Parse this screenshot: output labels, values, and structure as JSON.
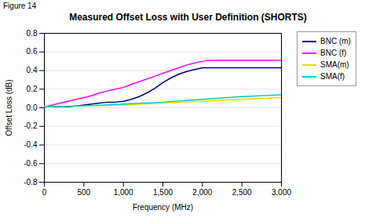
{
  "chart_data": {
    "type": "line",
    "title": "Measured Offset Loss with User Definition (SHORTS)",
    "annotations": [
      "Figure 14"
    ],
    "xlabel": "Frequency (MHz)",
    "ylabel": "Offset Loss (dB)",
    "xlim": [
      0,
      3000
    ],
    "ylim": [
      -0.8,
      0.8
    ],
    "xticks": [
      0,
      500,
      {
        "value": 1000,
        "label": "1,000"
      },
      {
        "value": 1500,
        "label": "1,500"
      },
      {
        "value": 2000,
        "label": "2,000"
      },
      {
        "value": 2500,
        "label": "2,500"
      },
      {
        "value": 3000,
        "label": "3,000"
      }
    ],
    "yticks": [
      -0.8,
      -0.6,
      -0.4,
      -0.2,
      {
        "value": 0,
        "label": "0.0"
      },
      0.2,
      0.4,
      0.6,
      0.8
    ],
    "grid": "y",
    "legend": "right",
    "series": [
      {
        "name": "BNC (m)",
        "color": "#000080",
        "x": [
          0,
          50,
          100,
          200,
          300,
          400,
          500,
          600,
          700,
          800,
          900,
          1000,
          1100,
          1200,
          1300,
          1400,
          1500,
          1600,
          1700,
          1800,
          1900,
          2000,
          2100,
          2200,
          2300,
          2400,
          2500,
          2600,
          2700,
          2800,
          2900,
          3000
        ],
        "values": [
          0.01,
          0.01,
          0.01,
          0.01,
          0.01,
          0.02,
          0.03,
          0.04,
          0.05,
          0.06,
          0.06,
          0.07,
          0.09,
          0.12,
          0.16,
          0.21,
          0.27,
          0.32,
          0.36,
          0.39,
          0.41,
          0.43,
          0.43,
          0.43,
          0.43,
          0.43,
          0.43,
          0.43,
          0.43,
          0.43,
          0.43,
          0.43
        ]
      },
      {
        "name": "BNC (f)",
        "color": "#FF00FF",
        "x": [
          0,
          50,
          100,
          200,
          300,
          400,
          500,
          600,
          700,
          800,
          900,
          1000,
          1100,
          1200,
          1300,
          1400,
          1500,
          1600,
          1700,
          1800,
          1900,
          2000,
          2100,
          2200,
          2300,
          2400,
          2500,
          2600,
          2700,
          2800,
          2900,
          3000
        ],
        "values": [
          0.01,
          0.02,
          0.03,
          0.05,
          0.07,
          0.09,
          0.11,
          0.13,
          0.16,
          0.18,
          0.2,
          0.22,
          0.25,
          0.28,
          0.31,
          0.34,
          0.37,
          0.4,
          0.43,
          0.46,
          0.48,
          0.5,
          0.51,
          0.51,
          0.51,
          0.51,
          0.51,
          0.51,
          0.51,
          0.51,
          0.51,
          0.51
        ]
      },
      {
        "name": "SMA(m)",
        "color": "#DDDD00",
        "x": [
          0,
          500,
          1000,
          1500,
          2000,
          2500,
          3000
        ],
        "values": [
          0.01,
          0.02,
          0.03,
          0.05,
          0.07,
          0.09,
          0.11
        ]
      },
      {
        "name": "SMA(f)",
        "color": "#00CCCC",
        "x": [
          0,
          500,
          1000,
          1500,
          2000,
          2500,
          3000
        ],
        "values": [
          0.01,
          0.02,
          0.04,
          0.06,
          0.09,
          0.12,
          0.14
        ]
      }
    ]
  }
}
